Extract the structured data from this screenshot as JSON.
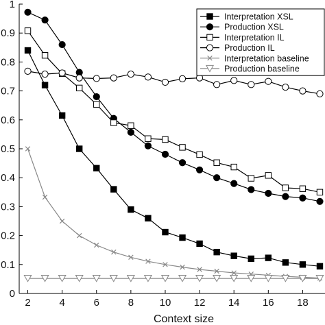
{
  "chart_data": {
    "type": "line",
    "title": "",
    "xlabel": "Context size",
    "ylabel": "",
    "xlim": [
      1.5,
      19.3
    ],
    "ylim": [
      0,
      1
    ],
    "x_ticks": [
      2,
      4,
      6,
      8,
      10,
      12,
      14,
      16,
      18
    ],
    "y_ticks": [
      0,
      0.1,
      0.2,
      0.3,
      0.4,
      0.5,
      0.6,
      0.7,
      0.8,
      0.9,
      1
    ],
    "y_tick_labels": [
      "0",
      "0.1",
      "0.2",
      "0.3",
      "0.4",
      "0.5",
      "0.6",
      "0.7",
      "0.8",
      "0.9",
      "1"
    ],
    "grid": false,
    "legend_position": "top-right",
    "x": [
      2,
      3,
      4,
      5,
      6,
      7,
      8,
      9,
      10,
      11,
      12,
      13,
      14,
      15,
      16,
      17,
      18,
      19
    ],
    "series": [
      {
        "name": "Interpretation XSL",
        "color": "#000000",
        "marker": "square-filled",
        "values": [
          0.84,
          0.72,
          0.615,
          0.5,
          0.433,
          0.36,
          0.29,
          0.26,
          0.212,
          0.193,
          0.172,
          0.143,
          0.13,
          0.12,
          0.123,
          0.107,
          0.1,
          0.094
        ]
      },
      {
        "name": "Production XSL",
        "color": "#000000",
        "marker": "circle-filled",
        "values": [
          0.972,
          0.945,
          0.86,
          0.764,
          0.68,
          0.605,
          0.557,
          0.51,
          0.481,
          0.452,
          0.427,
          0.4,
          0.38,
          0.359,
          0.346,
          0.335,
          0.33,
          0.318
        ]
      },
      {
        "name": "Interpretation IL",
        "color": "#000000",
        "marker": "square-open",
        "values": [
          0.908,
          0.823,
          0.76,
          0.71,
          0.653,
          0.59,
          0.58,
          0.535,
          0.532,
          0.505,
          0.48,
          0.452,
          0.437,
          0.398,
          0.408,
          0.365,
          0.362,
          0.35
        ]
      },
      {
        "name": "Production IL",
        "color": "#000000",
        "marker": "circle-open",
        "values": [
          0.768,
          0.758,
          0.762,
          0.745,
          0.743,
          0.745,
          0.758,
          0.748,
          0.73,
          0.742,
          0.745,
          0.722,
          0.736,
          0.722,
          0.733,
          0.713,
          0.7,
          0.69
        ]
      },
      {
        "name": "Interpretation baseline",
        "color": "#888888",
        "marker": "x",
        "values": [
          0.5,
          0.333,
          0.25,
          0.2,
          0.167,
          0.143,
          0.125,
          0.111,
          0.1,
          0.091,
          0.083,
          0.077,
          0.071,
          0.067,
          0.063,
          0.059,
          0.056,
          0.053
        ]
      },
      {
        "name": "Production baseline",
        "color": "#888888",
        "marker": "triangle-down-open",
        "values": [
          0.052,
          0.052,
          0.052,
          0.052,
          0.052,
          0.052,
          0.052,
          0.052,
          0.052,
          0.052,
          0.052,
          0.052,
          0.052,
          0.052,
          0.052,
          0.052,
          0.052,
          0.052
        ]
      }
    ]
  }
}
